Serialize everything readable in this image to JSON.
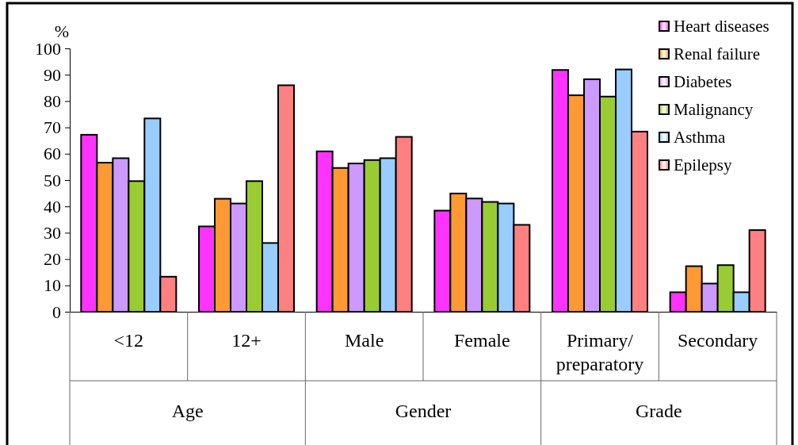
{
  "chart_data": {
    "type": "bar",
    "ylabel": "%",
    "categories": [
      "<12",
      "12+",
      "Male",
      "Female",
      "Primary/ preparatory",
      "Secondary"
    ],
    "annotations": [
      "Age",
      "Gender",
      "Grade"
    ],
    "series": [
      {
        "name": "Heart diseases",
        "color": "#ff33ff",
        "values": [
          67.2,
          32.4,
          60.9,
          38.4,
          91.8,
          7.4
        ]
      },
      {
        "name": "Renal failure",
        "color": "#ff9933",
        "values": [
          56.6,
          42.9,
          54.6,
          44.9,
          82.2,
          17.3
        ]
      },
      {
        "name": "Diabetes",
        "color": "#cc99ff",
        "values": [
          58.3,
          41.1,
          56.3,
          43,
          88.3,
          10.7
        ]
      },
      {
        "name": "Malignancy",
        "color": "#99cc33",
        "values": [
          49.6,
          49.6,
          57.6,
          41.7,
          81.7,
          17.7
        ]
      },
      {
        "name": "Asthma",
        "color": "#99ccff",
        "values": [
          73.4,
          26.1,
          58.3,
          41.1,
          92,
          7.4
        ]
      },
      {
        "name": "Epilepsy",
        "color": "#ff8080",
        "values": [
          13.3,
          86,
          66.4,
          33,
          68.4,
          31
        ]
      }
    ],
    "ylim": [
      0,
      100
    ],
    "yticks": [
      0,
      10,
      20,
      30,
      40,
      50,
      60,
      70,
      80,
      90,
      100
    ],
    "grid": false,
    "legend": "top right"
  }
}
